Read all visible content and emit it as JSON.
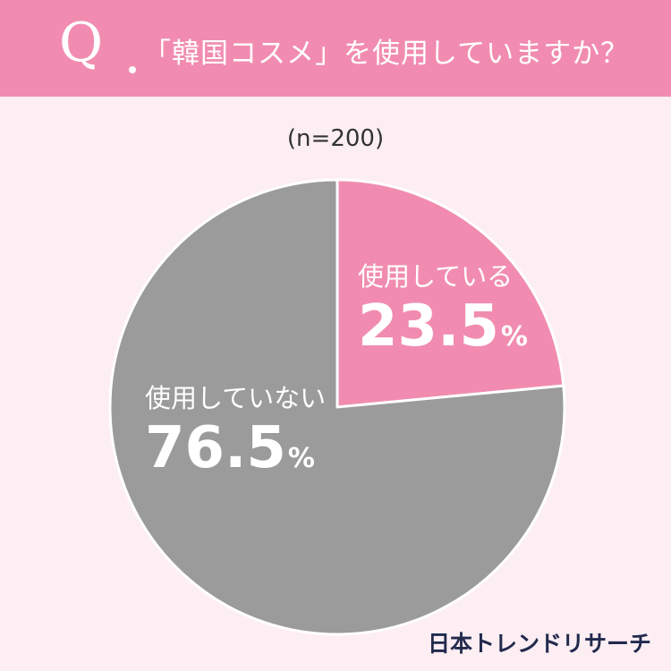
{
  "header": {
    "q_mark": "Q",
    "question": "「韓国コスメ」を使用していますか？"
  },
  "sample_size": "(n=200)",
  "brand": "日本トレンドリサーチ",
  "colors": {
    "header_bg": "#f18cb0",
    "page_bg": "#fdeef3",
    "slice_using": "#f18cb0",
    "slice_not_using": "#9b9b9b"
  },
  "chart_data": {
    "type": "pie",
    "slices": [
      {
        "label": "使用している",
        "value": 23.5,
        "color": "#f18cb0"
      },
      {
        "label": "使用していない",
        "value": 76.5,
        "color": "#9b9b9b"
      }
    ],
    "unit": "%",
    "start": "top",
    "direction": "clockwise"
  }
}
